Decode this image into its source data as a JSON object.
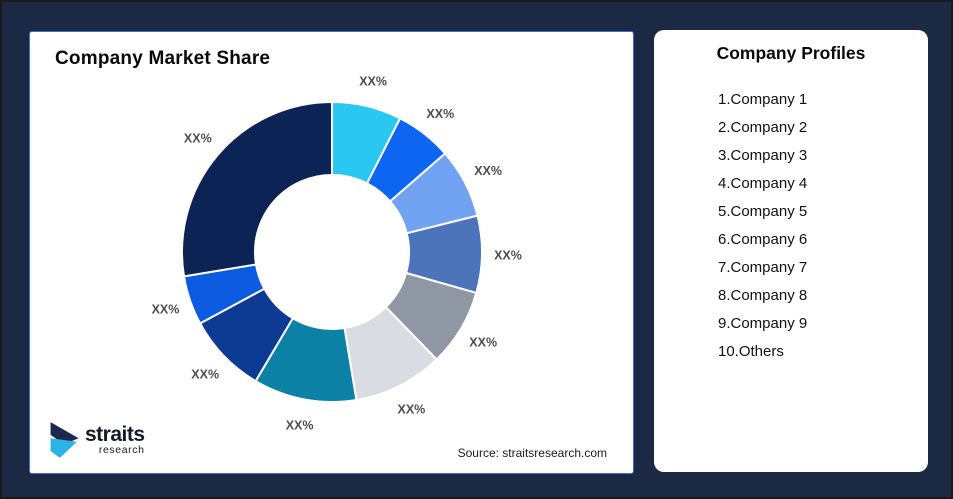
{
  "frame": {
    "background_color": "#1C2944",
    "border_color": "#1A1A1A"
  },
  "chart_card": {
    "title": "Company Market Share",
    "source_text": "Source: straitsresearch.com",
    "card_border_color": "#3E6BD5",
    "logo": {
      "brand": "straits",
      "brand_sub": "research",
      "icon_navy": "#1B2A4A",
      "icon_cyan": "#2BB3E8"
    }
  },
  "chart_data": {
    "type": "pie",
    "variant": "donut",
    "title": "Company Market Share",
    "inner_radius_ratio": 0.51,
    "start_angle_deg": 0,
    "direction": "clockwise",
    "value_label_text": "XX%",
    "label_color": "#4D4D4D",
    "note": "All slice value labels show the placeholder XX%; percents below are estimated from arc angles",
    "series": [
      {
        "name": "Company 1",
        "label": "XX%",
        "estimated_percent": 7.5,
        "color": "#29C7F2"
      },
      {
        "name": "Company 2",
        "label": "XX%",
        "estimated_percent": 6.1,
        "color": "#0D66F2"
      },
      {
        "name": "Company 3",
        "label": "XX%",
        "estimated_percent": 7.5,
        "color": "#72A3F2"
      },
      {
        "name": "Company 4",
        "label": "XX%",
        "estimated_percent": 8.3,
        "color": "#4C74BA"
      },
      {
        "name": "Company 5",
        "label": "XX%",
        "estimated_percent": 8.3,
        "color": "#8F96A4"
      },
      {
        "name": "Company 6",
        "label": "XX%",
        "estimated_percent": 9.7,
        "color": "#D9DCE3"
      },
      {
        "name": "Company 7",
        "label": "XX%",
        "estimated_percent": 11.1,
        "color": "#0B82A5"
      },
      {
        "name": "Company 8",
        "label": "XX%",
        "estimated_percent": 8.6,
        "color": "#0D3B94"
      },
      {
        "name": "Company 9",
        "label": "XX%",
        "estimated_percent": 5.3,
        "color": "#0C5BE0"
      },
      {
        "name": "Others",
        "label": "XX%",
        "estimated_percent": 27.6,
        "color": "#0B2355"
      }
    ]
  },
  "profiles_card": {
    "title": "Company Profiles",
    "items": [
      "1.Company 1",
      "2.Company 2",
      "3.Company 3",
      "4.Company 4",
      "5.Company 5",
      "6.Company 6",
      "7.Company 7",
      "8.Company 8",
      "9.Company 9",
      "10.Others"
    ]
  }
}
